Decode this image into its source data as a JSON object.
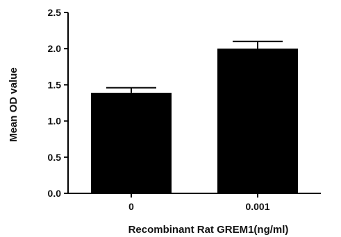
{
  "chart_data": {
    "type": "bar",
    "categories": [
      "0",
      "0.001"
    ],
    "values": [
      1.39,
      2.0
    ],
    "errors": [
      0.07,
      0.1
    ],
    "xlabel": "Recombinant Rat GREM1(ng/ml)",
    "ylabel": "Mean OD value",
    "ylim": [
      0,
      2.5
    ],
    "yticks": [
      "0.0",
      "0.5",
      "1.0",
      "1.5",
      "2.0",
      "2.5"
    ],
    "bar_color": "#000000",
    "grid": false,
    "legend": "none"
  }
}
